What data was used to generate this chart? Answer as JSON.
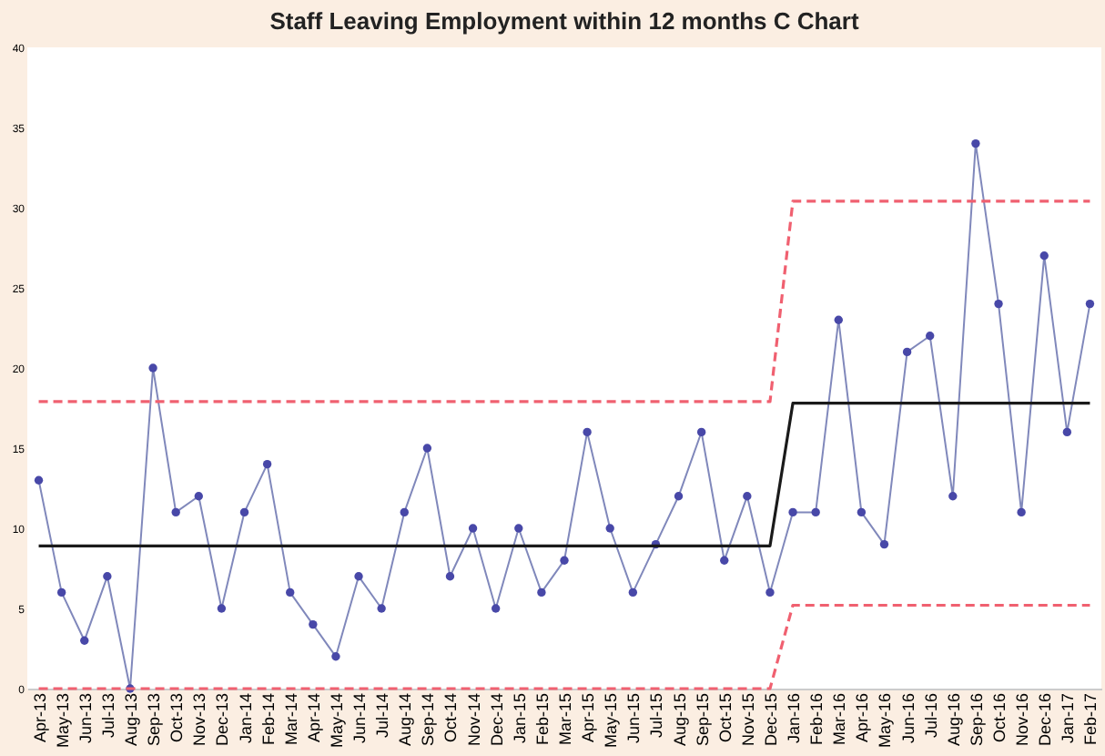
{
  "chart_data": {
    "type": "line",
    "title": "Staff Leaving Employment within 12 months C Chart",
    "categories": [
      "Apr-13",
      "May-13",
      "Jun-13",
      "Jul-13",
      "Aug-13",
      "Sep-13",
      "Oct-13",
      "Nov-13",
      "Dec-13",
      "Jan-14",
      "Feb-14",
      "Mar-14",
      "Apr-14",
      "May-14",
      "Jun-14",
      "Jul-14",
      "Aug-14",
      "Sep-14",
      "Oct-14",
      "Nov-14",
      "Dec-14",
      "Jan-15",
      "Feb-15",
      "Mar-15",
      "Apr-15",
      "May-15",
      "Jun-15",
      "Jul-15",
      "Aug-15",
      "Sep-15",
      "Oct-15",
      "Nov-15",
      "Dec-15",
      "Jan-16",
      "Feb-16",
      "Mar-16",
      "Apr-16",
      "May-16",
      "Jun-16",
      "Jul-16",
      "Aug-16",
      "Sep-16",
      "Oct-16",
      "Nov-16",
      "Dec-16",
      "Jan-17",
      "Feb-17"
    ],
    "series": [
      {
        "color": "#4848a8",
        "marker": "circle",
        "line_style": "solid",
        "values": [
          13,
          6,
          3,
          7,
          0,
          20,
          11,
          12,
          5,
          11,
          14,
          6,
          4,
          2,
          7,
          5,
          11,
          15,
          7,
          10,
          5,
          10,
          6,
          8,
          16,
          10,
          6,
          9,
          12,
          16,
          8,
          12,
          6,
          11,
          11,
          23,
          11,
          9,
          21,
          22,
          12,
          34,
          24,
          11,
          27,
          16,
          24
        ]
      },
      {
        "color": "#1a1a1a",
        "marker": "none",
        "line_style": "solid",
        "values": [
          8.9,
          8.9,
          8.9,
          8.9,
          8.9,
          8.9,
          8.9,
          8.9,
          8.9,
          8.9,
          8.9,
          8.9,
          8.9,
          8.9,
          8.9,
          8.9,
          8.9,
          8.9,
          8.9,
          8.9,
          8.9,
          8.9,
          8.9,
          8.9,
          8.9,
          8.9,
          8.9,
          8.9,
          8.9,
          8.9,
          8.9,
          8.9,
          8.9,
          17.8,
          17.8,
          17.8,
          17.8,
          17.8,
          17.8,
          17.8,
          17.8,
          17.8,
          17.8,
          17.8,
          17.8,
          17.8,
          17.8
        ]
      },
      {
        "color": "#f06070",
        "marker": "none",
        "line_style": "dashed",
        "values": [
          17.9,
          17.9,
          17.9,
          17.9,
          17.9,
          17.9,
          17.9,
          17.9,
          17.9,
          17.9,
          17.9,
          17.9,
          17.9,
          17.9,
          17.9,
          17.9,
          17.9,
          17.9,
          17.9,
          17.9,
          17.9,
          17.9,
          17.9,
          17.9,
          17.9,
          17.9,
          17.9,
          17.9,
          17.9,
          17.9,
          17.9,
          17.9,
          17.9,
          30.4,
          30.4,
          30.4,
          30.4,
          30.4,
          30.4,
          30.4,
          30.4,
          30.4,
          30.4,
          30.4,
          30.4,
          30.4,
          30.4
        ]
      },
      {
        "color": "#f06070",
        "marker": "none",
        "line_style": "dashed",
        "values": [
          0,
          0,
          0,
          0,
          0,
          0,
          0,
          0,
          0,
          0,
          0,
          0,
          0,
          0,
          0,
          0,
          0,
          0,
          0,
          0,
          0,
          0,
          0,
          0,
          0,
          0,
          0,
          0,
          0,
          0,
          0,
          0,
          0,
          5.2,
          5.2,
          5.2,
          5.2,
          5.2,
          5.2,
          5.2,
          5.2,
          5.2,
          5.2,
          5.2,
          5.2,
          5.2,
          5.2
        ]
      }
    ],
    "ylim": [
      0,
      40
    ],
    "yticks": [
      0,
      5,
      10,
      15,
      20,
      25,
      30,
      35,
      40
    ],
    "grid": false
  }
}
